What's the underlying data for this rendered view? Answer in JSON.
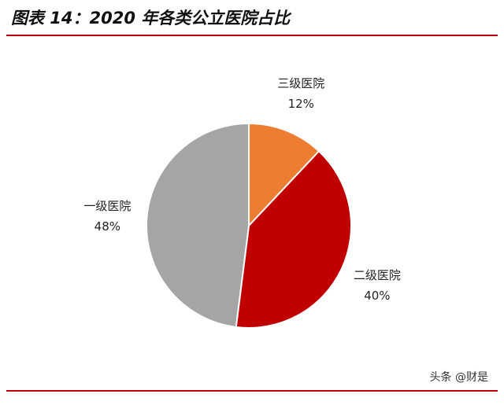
{
  "chart_data": {
    "type": "pie",
    "title": "图表 14：2020 年各类公立医院占比",
    "categories": [
      "三级医院",
      "二级医院",
      "一级医院"
    ],
    "values": [
      12,
      40,
      48
    ],
    "value_labels": [
      "12%",
      "40%",
      "48%"
    ],
    "colors": [
      "#ED7D31",
      "#C00000",
      "#A5A5A5"
    ],
    "watermark": "头条 @财是"
  }
}
